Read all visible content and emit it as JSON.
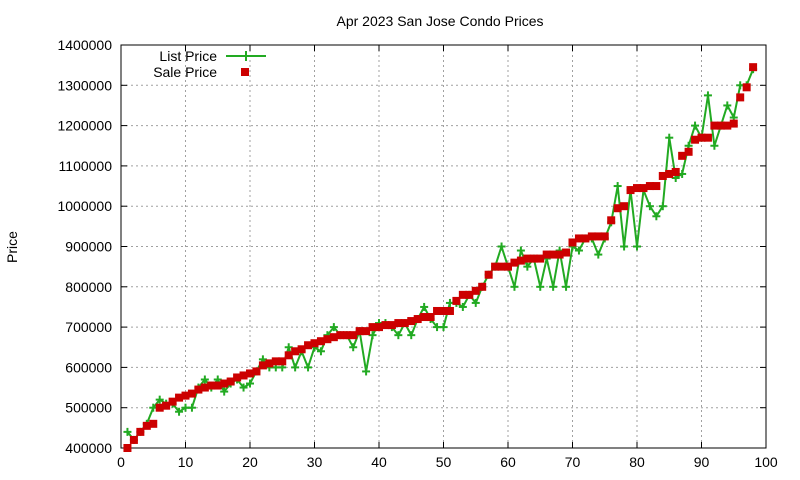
{
  "chart_data": {
    "type": "line",
    "title": "Apr 2023 San Jose Condo Prices",
    "xlabel": "",
    "ylabel": "Price",
    "xlim": [
      0,
      100
    ],
    "ylim": [
      400000,
      1400000
    ],
    "x_ticks": [
      "0",
      "10",
      "20",
      "30",
      "40",
      "50",
      "60",
      "70",
      "80",
      "90",
      "100"
    ],
    "y_ticks": [
      "400000",
      "500000",
      "600000",
      "700000",
      "800000",
      "900000",
      "1000000",
      "1100000",
      "1200000",
      "1300000",
      "1400000"
    ],
    "grid": true,
    "legend_position": "top-left",
    "series": [
      {
        "name": "List Price",
        "color": "#22aa22",
        "marker": "plus",
        "x": [
          1,
          2,
          3,
          4,
          5,
          6,
          7,
          8,
          9,
          10,
          11,
          12,
          13,
          14,
          15,
          16,
          17,
          18,
          19,
          20,
          21,
          22,
          23,
          24,
          25,
          26,
          27,
          28,
          29,
          30,
          31,
          32,
          33,
          34,
          35,
          36,
          37,
          38,
          39,
          40,
          41,
          42,
          43,
          44,
          45,
          46,
          47,
          48,
          49,
          50,
          51,
          52,
          53,
          54,
          55,
          56,
          57,
          58,
          59,
          60,
          61,
          62,
          63,
          64,
          65,
          66,
          67,
          68,
          69,
          70,
          71,
          72,
          73,
          74,
          75,
          76,
          77,
          78,
          79,
          80,
          81,
          82,
          83,
          84,
          85,
          86,
          87,
          88,
          89,
          90,
          91,
          92,
          93,
          94,
          95,
          96,
          97,
          98
        ],
        "values": [
          440000,
          420000,
          440000,
          460000,
          500000,
          520000,
          510000,
          510000,
          490000,
          500000,
          500000,
          550000,
          570000,
          550000,
          570000,
          540000,
          560000,
          570000,
          550000,
          560000,
          590000,
          620000,
          600000,
          600000,
          600000,
          650000,
          600000,
          640000,
          600000,
          650000,
          640000,
          680000,
          700000,
          680000,
          680000,
          650000,
          690000,
          590000,
          680000,
          710000,
          710000,
          700000,
          680000,
          710000,
          680000,
          720000,
          750000,
          720000,
          700000,
          700000,
          760000,
          760000,
          750000,
          780000,
          760000,
          800000,
          830000,
          850000,
          900000,
          850000,
          800000,
          890000,
          850000,
          870000,
          800000,
          870000,
          800000,
          890000,
          800000,
          900000,
          890000,
          920000,
          920000,
          880000,
          920000,
          960000,
          1050000,
          900000,
          1040000,
          900000,
          1040000,
          1000000,
          975000,
          1000000,
          1170000,
          1070000,
          1080000,
          1150000,
          1200000,
          1170000,
          1275000,
          1150000,
          1200000,
          1250000,
          1220000,
          1300000,
          1300000,
          1340000
        ]
      },
      {
        "name": "Sale Price",
        "color": "#cc0000",
        "marker": "square",
        "x": [
          1,
          2,
          3,
          4,
          5,
          6,
          7,
          8,
          9,
          10,
          11,
          12,
          13,
          14,
          15,
          16,
          17,
          18,
          19,
          20,
          21,
          22,
          23,
          24,
          25,
          26,
          27,
          28,
          29,
          30,
          31,
          32,
          33,
          34,
          35,
          36,
          37,
          38,
          39,
          40,
          41,
          42,
          43,
          44,
          45,
          46,
          47,
          48,
          49,
          50,
          51,
          52,
          53,
          54,
          55,
          56,
          57,
          58,
          59,
          60,
          61,
          62,
          63,
          64,
          65,
          66,
          67,
          68,
          69,
          70,
          71,
          72,
          73,
          74,
          75,
          76,
          77,
          78,
          79,
          80,
          81,
          82,
          83,
          84,
          85,
          86,
          87,
          88,
          89,
          90,
          91,
          92,
          93,
          94,
          95,
          96,
          97,
          98
        ],
        "values": [
          400000,
          420000,
          440000,
          455000,
          460000,
          500000,
          505000,
          515000,
          525000,
          530000,
          535000,
          545000,
          550000,
          555000,
          555000,
          560000,
          565000,
          575000,
          580000,
          585000,
          590000,
          605000,
          610000,
          615000,
          615000,
          630000,
          640000,
          645000,
          655000,
          660000,
          665000,
          670000,
          675000,
          680000,
          680000,
          680000,
          690000,
          690000,
          700000,
          700000,
          705000,
          705000,
          710000,
          710000,
          715000,
          720000,
          725000,
          725000,
          740000,
          740000,
          740000,
          765000,
          780000,
          780000,
          790000,
          800000,
          830000,
          850000,
          850000,
          850000,
          860000,
          865000,
          870000,
          870000,
          870000,
          880000,
          880000,
          880000,
          885000,
          910000,
          920000,
          920000,
          925000,
          925000,
          925000,
          965000,
          995000,
          1000000,
          1040000,
          1045000,
          1045000,
          1050000,
          1050000,
          1075000,
          1080000,
          1085000,
          1125000,
          1135000,
          1165000,
          1170000,
          1170000,
          1200000,
          1200000,
          1200000,
          1205000,
          1270000,
          1295000,
          1345000
        ]
      }
    ]
  }
}
